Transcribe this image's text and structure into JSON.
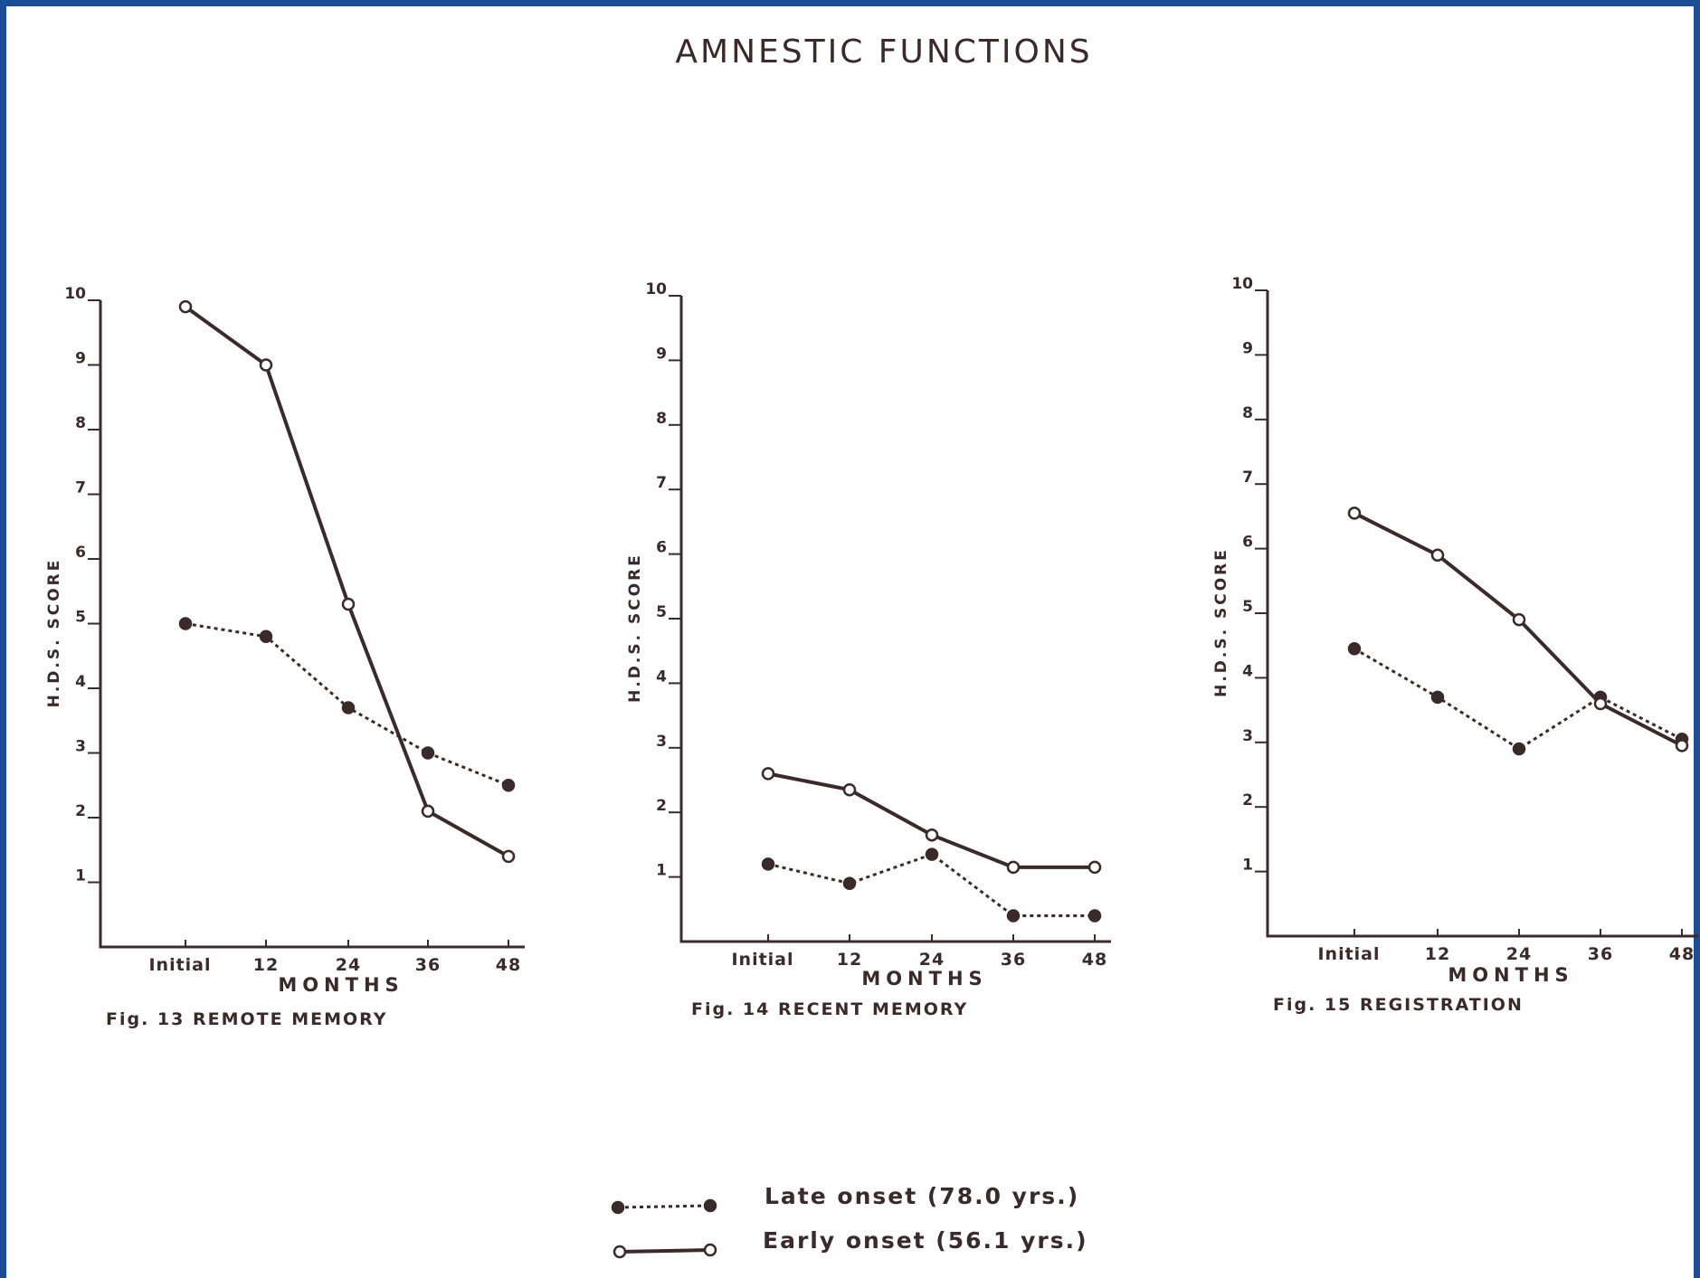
{
  "figure": {
    "title": "AMNESTIC FUNCTIONS"
  },
  "legend": {
    "placement": "bottom-center",
    "items": [
      {
        "key": "late",
        "label": "Late onset (78.0 yrs.)",
        "marker": "filled-circle",
        "line": "dotted"
      },
      {
        "key": "early",
        "label": "Early onset (56.1 yrs.)",
        "marker": "open-circle",
        "line": "solid"
      }
    ]
  },
  "colors": {
    "border": "#1c4e96",
    "ink": "#3a2a2a",
    "background": "#fefefe"
  },
  "chart_data": [
    {
      "type": "line",
      "caption": "Fig. 13 REMOTE MEMORY",
      "xlabel": "MONTHS",
      "ylabel": "H.D.S. SCORE",
      "categories": [
        "Initial",
        "12",
        "24",
        "36",
        "48"
      ],
      "yticks": [
        "1",
        "2",
        "3",
        "4",
        "5",
        "6",
        "7",
        "8",
        "9",
        "10"
      ],
      "ylim": [
        0,
        10
      ],
      "grid": false,
      "series": [
        {
          "key": "late",
          "name": "Late onset (78.0 yrs.)",
          "values": [
            5.0,
            4.8,
            3.7,
            3.0,
            2.5
          ]
        },
        {
          "key": "early",
          "name": "Early onset (56.1 yrs.)",
          "values": [
            9.9,
            9.0,
            5.3,
            2.1,
            1.4
          ]
        }
      ]
    },
    {
      "type": "line",
      "caption": "Fig. 14 RECENT MEMORY",
      "xlabel": "MONTHS",
      "ylabel": "H.D.S. SCORE",
      "categories": [
        "Initial",
        "12",
        "24",
        "36",
        "48"
      ],
      "yticks": [
        "1",
        "2",
        "3",
        "4",
        "5",
        "6",
        "7",
        "8",
        "9",
        "10"
      ],
      "ylim": [
        0,
        10
      ],
      "grid": false,
      "series": [
        {
          "key": "late",
          "name": "Late onset (78.0 yrs.)",
          "values": [
            1.2,
            0.9,
            1.35,
            0.4,
            0.4
          ]
        },
        {
          "key": "early",
          "name": "Early onset (56.1 yrs.)",
          "values": [
            2.6,
            2.35,
            1.65,
            1.15,
            1.15
          ]
        }
      ]
    },
    {
      "type": "line",
      "caption": "Fig. 15 REGISTRATION",
      "xlabel": "MONTHS",
      "ylabel": "H.D.S. SCORE",
      "categories": [
        "Initial",
        "12",
        "24",
        "36",
        "48"
      ],
      "yticks": [
        "1",
        "2",
        "3",
        "4",
        "5",
        "6",
        "7",
        "8",
        "9",
        "10"
      ],
      "ylim": [
        0,
        10
      ],
      "grid": false,
      "series": [
        {
          "key": "late",
          "name": "Late onset (78.0 yrs.)",
          "values": [
            4.45,
            3.7,
            2.9,
            3.7,
            3.05
          ]
        },
        {
          "key": "early",
          "name": "Early onset (56.1 yrs.)",
          "values": [
            6.55,
            5.9,
            4.9,
            3.6,
            2.95
          ]
        }
      ]
    }
  ]
}
